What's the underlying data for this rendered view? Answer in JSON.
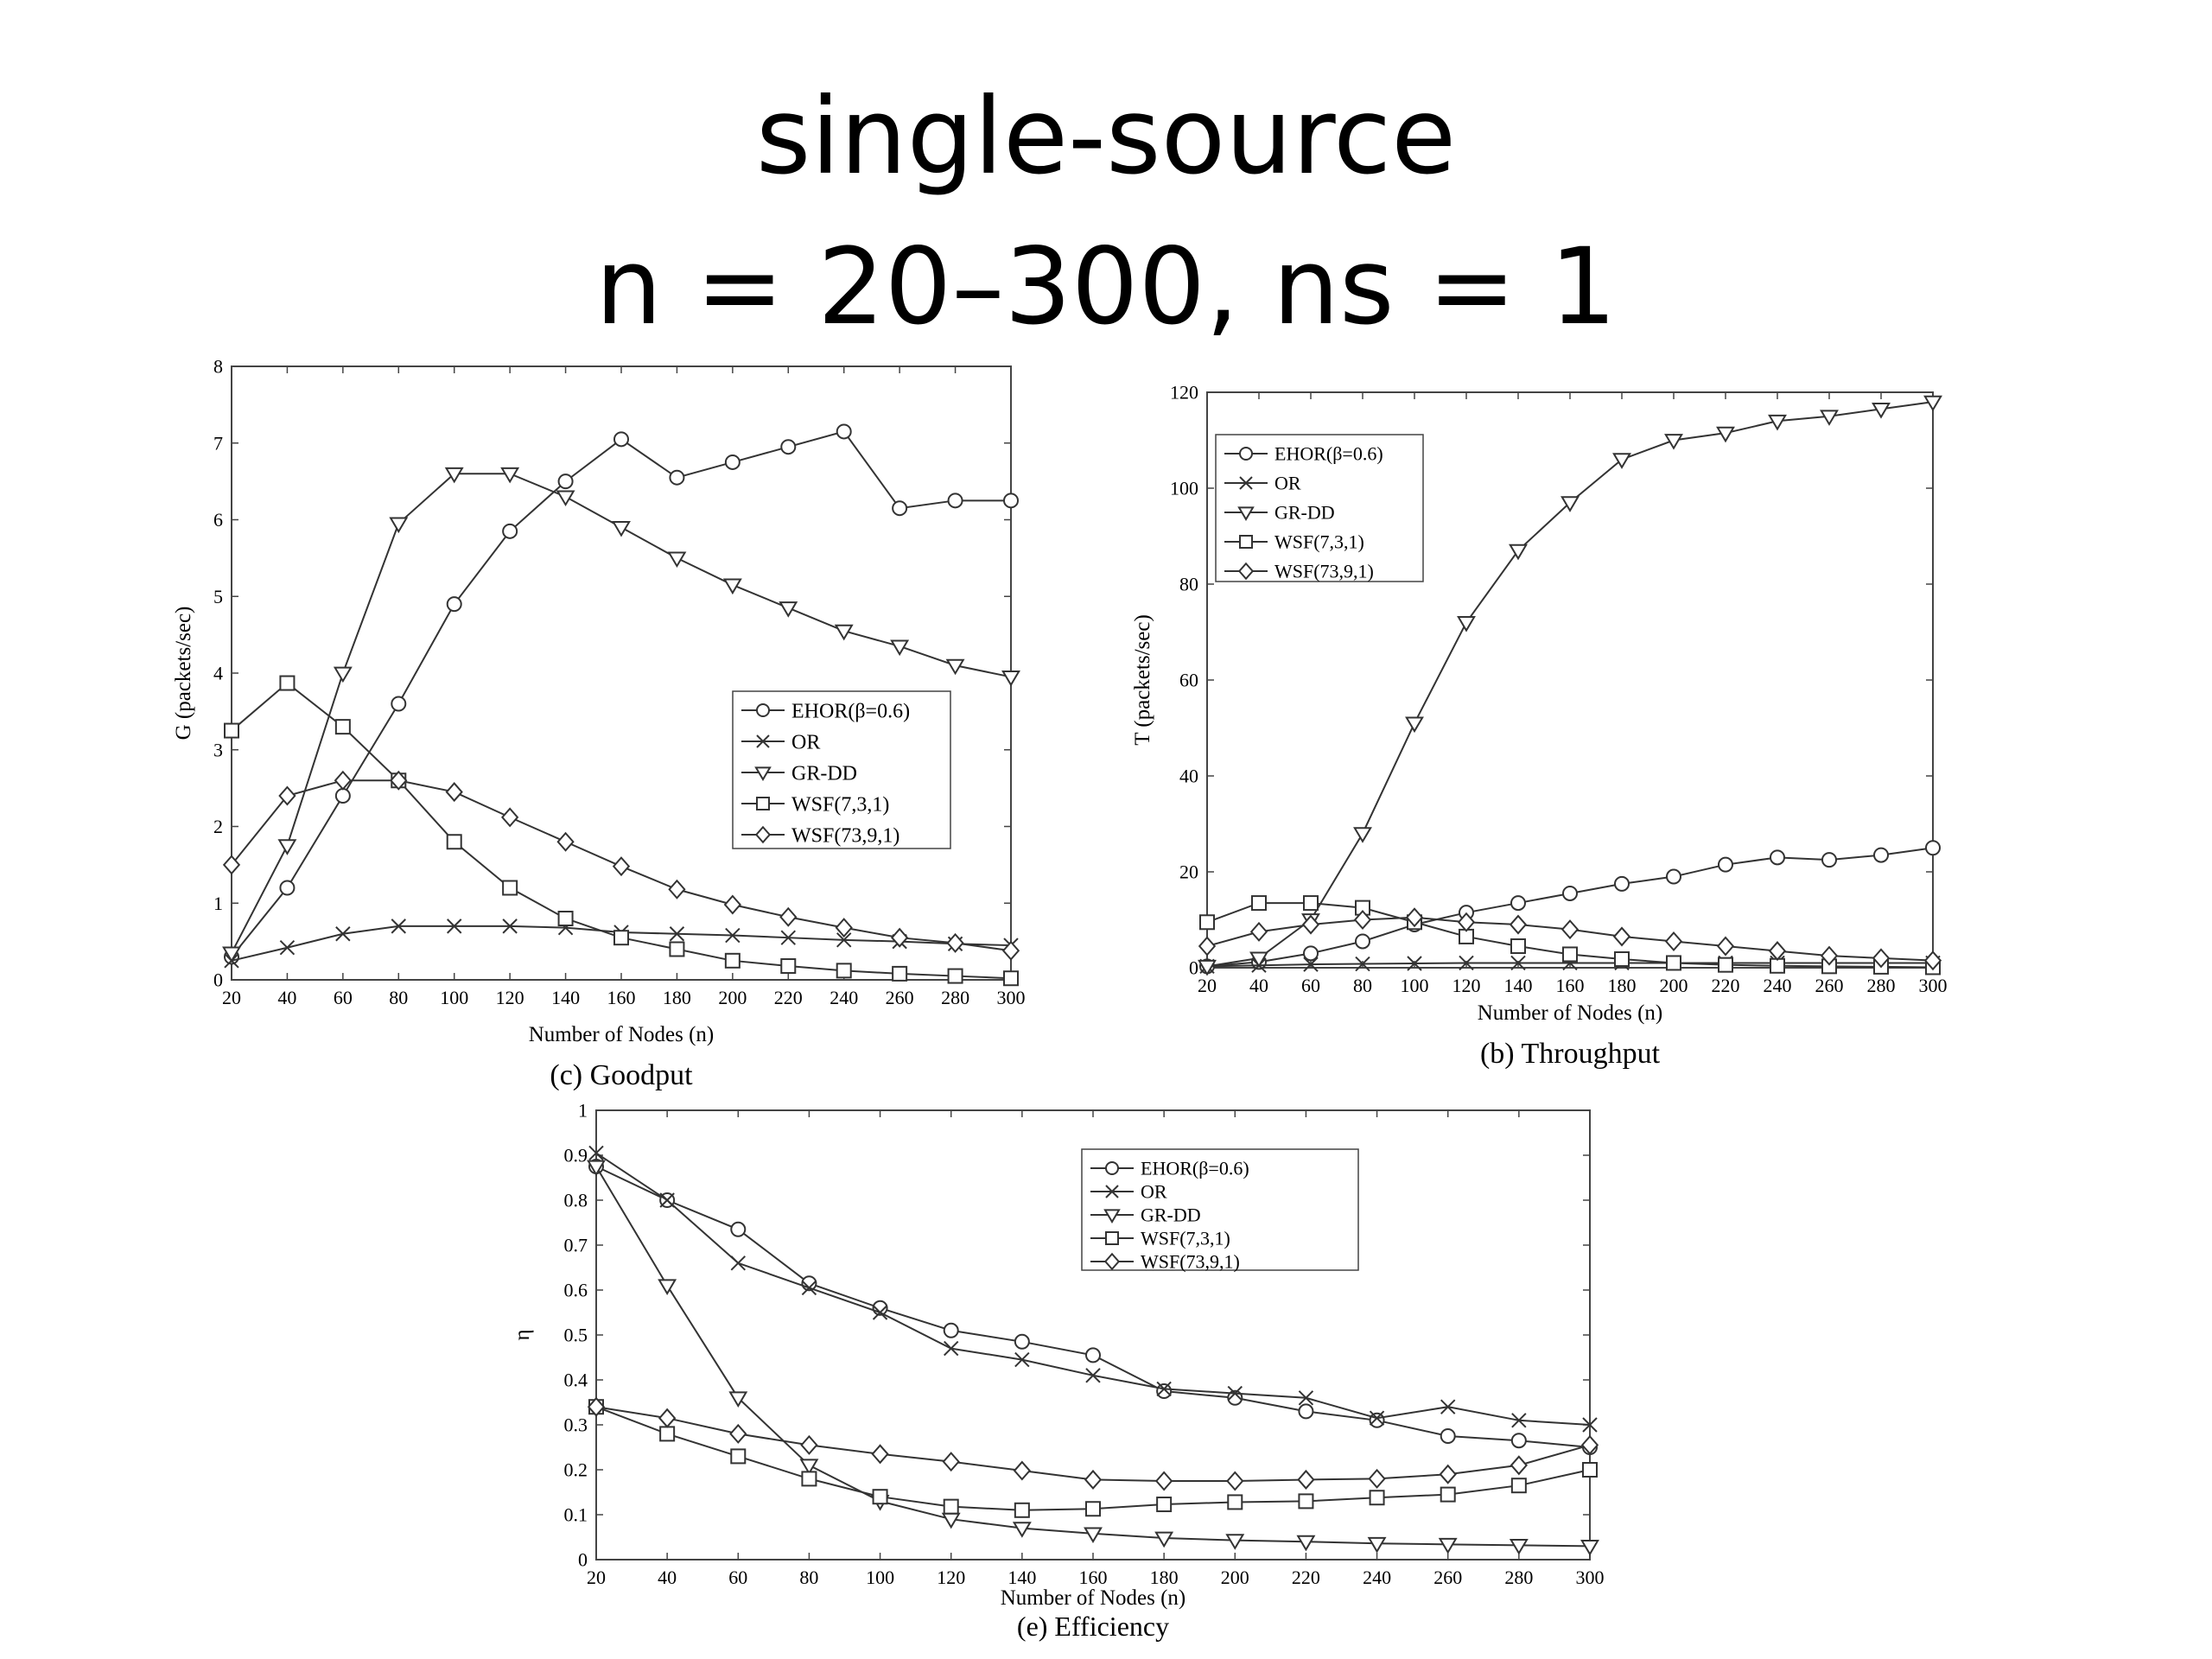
{
  "slide": {
    "title_line1": "single-source",
    "title_line2": "n = 20–300, ns = 1"
  },
  "chart_data": [
    {
      "id": "goodput",
      "type": "line",
      "caption": "(c) Goodput",
      "xlabel": "Number of Nodes (n)",
      "ylabel": "G (packets/sec)",
      "xlim": [
        20,
        300
      ],
      "ylim": [
        0,
        8
      ],
      "xticks": [
        20,
        40,
        60,
        80,
        100,
        120,
        140,
        160,
        180,
        200,
        220,
        240,
        260,
        280,
        300
      ],
      "yticks": [
        0,
        1,
        2,
        3,
        4,
        5,
        6,
        7,
        8
      ],
      "grid": false,
      "legend_position": "middle-right",
      "x": [
        20,
        40,
        60,
        80,
        100,
        120,
        140,
        160,
        180,
        200,
        220,
        240,
        260,
        280,
        300
      ],
      "series": [
        {
          "name": "EHOR(β=0.6)",
          "marker": "circle",
          "values": [
            0.3,
            1.2,
            2.4,
            3.6,
            4.9,
            5.85,
            6.5,
            7.05,
            6.55,
            6.75,
            6.95,
            7.15,
            6.15,
            6.25,
            6.25
          ]
        },
        {
          "name": "OR",
          "marker": "x",
          "values": [
            0.25,
            0.42,
            0.6,
            0.7,
            0.7,
            0.7,
            0.68,
            0.62,
            0.6,
            0.58,
            0.55,
            0.52,
            0.5,
            0.47,
            0.45
          ]
        },
        {
          "name": "GR-DD",
          "marker": "triangle-down",
          "values": [
            0.35,
            1.75,
            4.0,
            5.95,
            6.6,
            6.6,
            6.3,
            5.9,
            5.5,
            5.15,
            4.85,
            4.55,
            4.35,
            4.1,
            3.95
          ]
        },
        {
          "name": "WSF(7,3,1)",
          "marker": "square",
          "values": [
            3.25,
            3.87,
            3.3,
            2.6,
            1.8,
            1.2,
            0.8,
            0.55,
            0.4,
            0.25,
            0.18,
            0.12,
            0.08,
            0.05,
            0.02
          ]
        },
        {
          "name": "WSF(73,9,1)",
          "marker": "diamond",
          "values": [
            1.5,
            2.4,
            2.6,
            2.6,
            2.45,
            2.12,
            1.8,
            1.48,
            1.18,
            0.98,
            0.82,
            0.68,
            0.55,
            0.48,
            0.38
          ]
        }
      ]
    },
    {
      "id": "throughput",
      "type": "line",
      "caption": "(b) Throughput",
      "xlabel": "Number of Nodes (n)",
      "ylabel": "T (packets/sec)",
      "xlim": [
        20,
        300
      ],
      "ylim": [
        0,
        120
      ],
      "xticks": [
        20,
        40,
        60,
        80,
        100,
        120,
        140,
        160,
        180,
        200,
        220,
        240,
        260,
        280,
        300
      ],
      "yticks": [
        0,
        20,
        40,
        60,
        80,
        100,
        120
      ],
      "grid": false,
      "legend_position": "top-left",
      "x": [
        20,
        40,
        60,
        80,
        100,
        120,
        140,
        160,
        180,
        200,
        220,
        240,
        260,
        280,
        300
      ],
      "series": [
        {
          "name": "EHOR(β=0.6)",
          "marker": "circle",
          "values": [
            0.3,
            1.2,
            3.0,
            5.5,
            9.0,
            11.5,
            13.5,
            15.5,
            17.5,
            19.0,
            21.5,
            23.0,
            22.5,
            23.5,
            25.0
          ]
        },
        {
          "name": "OR",
          "marker": "x",
          "values": [
            0.3,
            0.5,
            0.7,
            0.8,
            0.9,
            1.0,
            1.0,
            1.0,
            1.0,
            1.0,
            1.0,
            1.0,
            1.0,
            1.0,
            1.0
          ]
        },
        {
          "name": "GR-DD",
          "marker": "triangle-down",
          "values": [
            0.3,
            2.0,
            10.0,
            28.0,
            51.0,
            72.0,
            87.0,
            97.0,
            106.0,
            110.0,
            111.5,
            114.0,
            115.0,
            116.5,
            118.0
          ]
        },
        {
          "name": "WSF(7,3,1)",
          "marker": "square",
          "values": [
            9.5,
            13.5,
            13.5,
            12.5,
            9.5,
            6.5,
            4.5,
            2.8,
            1.8,
            1.0,
            0.6,
            0.4,
            0.3,
            0.2,
            0.1
          ]
        },
        {
          "name": "WSF(73,9,1)",
          "marker": "diamond",
          "values": [
            4.5,
            7.5,
            9.0,
            10.0,
            10.5,
            9.5,
            9.0,
            8.0,
            6.5,
            5.5,
            4.5,
            3.5,
            2.5,
            2.0,
            1.5
          ]
        }
      ]
    },
    {
      "id": "efficiency",
      "type": "line",
      "caption": "(e) Efficiency",
      "xlabel": "Number of Nodes (n)",
      "ylabel": "η",
      "xlim": [
        20,
        300
      ],
      "ylim": [
        0,
        1
      ],
      "xticks": [
        20,
        40,
        60,
        80,
        100,
        120,
        140,
        160,
        180,
        200,
        220,
        240,
        260,
        280,
        300
      ],
      "yticks": [
        0,
        0.1,
        0.2,
        0.3,
        0.4,
        0.5,
        0.6,
        0.7,
        0.8,
        0.9,
        1
      ],
      "grid": false,
      "legend_position": "top-right",
      "x": [
        20,
        40,
        60,
        80,
        100,
        120,
        140,
        160,
        180,
        200,
        220,
        240,
        260,
        280,
        300
      ],
      "series": [
        {
          "name": "EHOR(β=0.6)",
          "marker": "circle",
          "values": [
            0.875,
            0.8,
            0.735,
            0.615,
            0.56,
            0.51,
            0.485,
            0.455,
            0.375,
            0.36,
            0.33,
            0.31,
            0.275,
            0.265,
            0.25
          ]
        },
        {
          "name": "OR",
          "marker": "x",
          "values": [
            0.905,
            0.8,
            0.66,
            0.605,
            0.55,
            0.47,
            0.445,
            0.41,
            0.38,
            0.37,
            0.36,
            0.315,
            0.34,
            0.31,
            0.3
          ]
        },
        {
          "name": "GR-DD",
          "marker": "triangle-down",
          "values": [
            0.875,
            0.61,
            0.36,
            0.21,
            0.13,
            0.09,
            0.07,
            0.058,
            0.048,
            0.043,
            0.04,
            0.036,
            0.034,
            0.032,
            0.03
          ]
        },
        {
          "name": "WSF(7,3,1)",
          "marker": "square",
          "values": [
            0.34,
            0.28,
            0.23,
            0.18,
            0.14,
            0.118,
            0.11,
            0.113,
            0.123,
            0.128,
            0.13,
            0.138,
            0.145,
            0.165,
            0.2
          ]
        },
        {
          "name": "WSF(73,9,1)",
          "marker": "diamond",
          "values": [
            0.34,
            0.315,
            0.28,
            0.255,
            0.235,
            0.218,
            0.198,
            0.178,
            0.175,
            0.175,
            0.178,
            0.18,
            0.19,
            0.21,
            0.255
          ]
        }
      ]
    }
  ]
}
